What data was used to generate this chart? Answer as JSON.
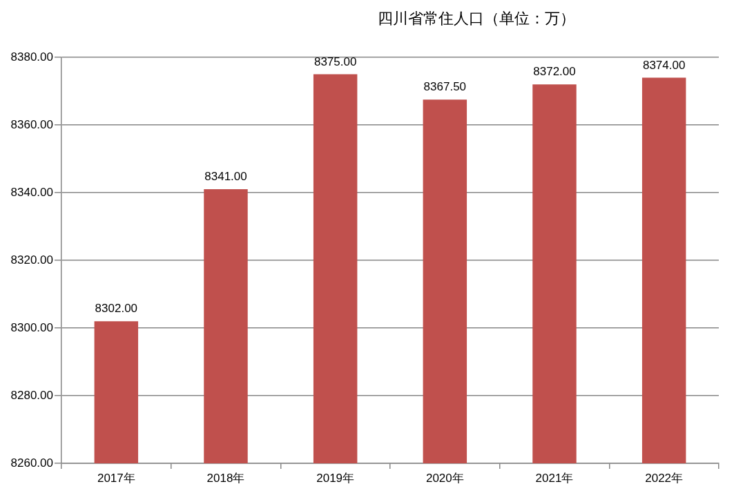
{
  "chart_data": {
    "type": "bar",
    "title": "四川省常住人口（单位：万）",
    "categories": [
      "2017年",
      "2018年",
      "2019年",
      "2020年",
      "2021年",
      "2022年"
    ],
    "values": [
      8302,
      8341,
      8375,
      8367.5,
      8372,
      8374
    ],
    "color": "#c0504d",
    "value_labels": [
      "8302.00",
      "8341.00",
      "8375.00",
      "8367.50",
      "8372.00",
      "8374.00"
    ],
    "ylim": [
      8260,
      8380
    ],
    "yticks": [
      {
        "value": 8260,
        "label": "8260.00"
      },
      {
        "value": 8280,
        "label": "8280.00"
      },
      {
        "value": 8300,
        "label": "8300.00"
      },
      {
        "value": 8320,
        "label": "8320.00"
      },
      {
        "value": 8340,
        "label": "8340.00"
      },
      {
        "value": 8360,
        "label": "8360.00"
      },
      {
        "value": 8380,
        "label": "8380.00"
      }
    ],
    "grid": "y"
  }
}
